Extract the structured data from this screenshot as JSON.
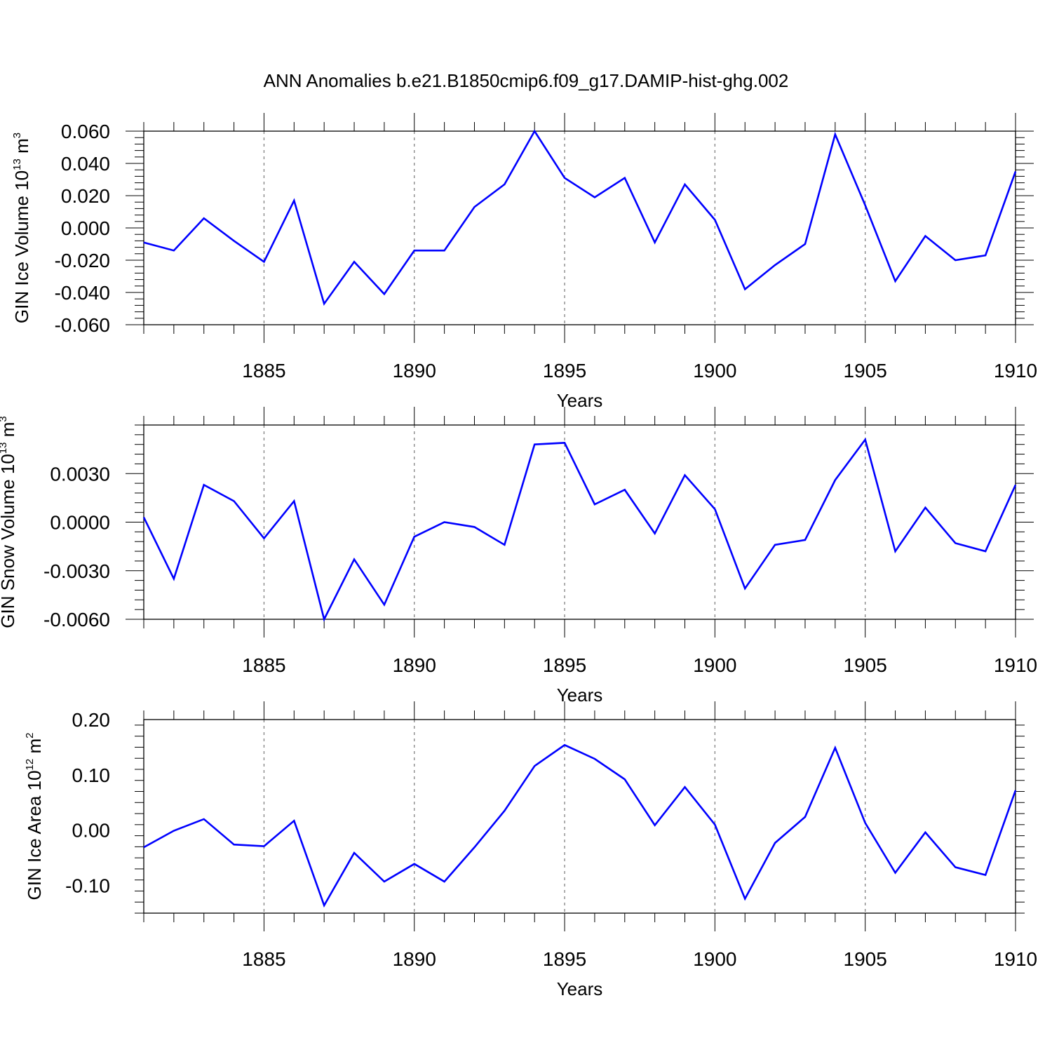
{
  "title": "ANN Anomalies b.e21.B1850cmip6.f09_g17.DAMIP-hist-ghg.002",
  "colors": {
    "line": "#0000ff",
    "axis": "#000000",
    "grid": "#777777"
  },
  "chart_data": [
    {
      "type": "line",
      "ylabel": {
        "base": "GIN Ice Volume 10",
        "exp": "13",
        "unit": " m",
        "unit_exp": "3"
      },
      "xlabel": "Years",
      "xlim": [
        1881,
        1910
      ],
      "ylim": [
        -0.06,
        0.06
      ],
      "yticks": [
        -0.06,
        -0.04,
        -0.02,
        0.0,
        0.02,
        0.04,
        0.06
      ],
      "ytick_labels": [
        "-0.060",
        "-0.040",
        "-0.020",
        "0.000",
        "0.020",
        "0.040",
        "0.060"
      ],
      "xticks": [
        1885,
        1890,
        1895,
        1900,
        1905,
        1910
      ],
      "xtick_labels": [
        "1885",
        "1890",
        "1895",
        "1900",
        "1905",
        "1910"
      ],
      "grid": "vertical dashed at major x ticks",
      "series": [
        {
          "x": [
            1881,
            1882,
            1883,
            1884,
            1885,
            1886,
            1887,
            1888,
            1889,
            1890,
            1891,
            1892,
            1893,
            1894,
            1895,
            1896,
            1897,
            1898,
            1899,
            1900,
            1901,
            1902,
            1903,
            1904,
            1905,
            1906,
            1907,
            1908,
            1909,
            1910
          ],
          "y": [
            -0.009,
            -0.014,
            0.006,
            -0.008,
            -0.021,
            0.017,
            -0.047,
            -0.021,
            -0.041,
            -0.014,
            -0.014,
            0.013,
            0.027,
            0.06,
            0.031,
            0.019,
            0.031,
            -0.009,
            0.027,
            0.005,
            -0.038,
            -0.023,
            -0.01,
            0.058,
            0.014,
            -0.033,
            -0.005,
            -0.02,
            -0.017,
            0.035
          ]
        }
      ]
    },
    {
      "type": "line",
      "ylabel": {
        "base": "GIN Snow Volume 10",
        "exp": "13",
        "unit": " m",
        "unit_exp": "3"
      },
      "xlabel": "Years",
      "xlim": [
        1881,
        1910
      ],
      "ylim": [
        -0.006,
        0.006
      ],
      "yticks": [
        -0.006,
        -0.003,
        0.0,
        0.003
      ],
      "ytick_labels": [
        "-0.0060",
        "-0.0030",
        "0.0000",
        "0.0030"
      ],
      "xticks": [
        1885,
        1890,
        1895,
        1900,
        1905,
        1910
      ],
      "xtick_labels": [
        "1885",
        "1890",
        "1895",
        "1900",
        "1905",
        "1910"
      ],
      "grid": "vertical dashed at major x ticks",
      "series": [
        {
          "x": [
            1881,
            1882,
            1883,
            1884,
            1885,
            1886,
            1887,
            1888,
            1889,
            1890,
            1891,
            1892,
            1893,
            1894,
            1895,
            1896,
            1897,
            1898,
            1899,
            1900,
            1901,
            1902,
            1903,
            1904,
            1905,
            1906,
            1907,
            1908,
            1909,
            1910
          ],
          "y": [
            0.0003,
            -0.0035,
            0.0023,
            0.0013,
            -0.001,
            0.0013,
            -0.006,
            -0.0023,
            -0.0051,
            -0.0009,
            -0.0,
            -0.0003,
            -0.0014,
            0.0048,
            0.0049,
            0.0011,
            0.002,
            -0.0007,
            0.0029,
            0.0008,
            -0.0041,
            -0.0014,
            -0.0011,
            0.0026,
            0.0051,
            -0.0018,
            0.0009,
            -0.0013,
            -0.0018,
            0.0023
          ]
        }
      ]
    },
    {
      "type": "line",
      "ylabel": {
        "base": "GIN Ice Area 10",
        "exp": "12",
        "unit": " m",
        "unit_exp": "2"
      },
      "xlabel": "Years",
      "xlim": [
        1881,
        1910
      ],
      "ylim": [
        -0.15,
        0.2
      ],
      "yticks": [
        -0.1,
        0.0,
        0.1,
        0.2
      ],
      "ytick_labels": [
        "-0.10",
        "0.00",
        "0.10",
        "0.20"
      ],
      "xticks": [
        1885,
        1890,
        1895,
        1900,
        1905,
        1910
      ],
      "xtick_labels": [
        "1885",
        "1890",
        "1895",
        "1900",
        "1905",
        "1910"
      ],
      "grid": "vertical dashed at major x ticks",
      "series": [
        {
          "x": [
            1881,
            1882,
            1883,
            1884,
            1885,
            1886,
            1887,
            1888,
            1889,
            1890,
            1891,
            1892,
            1893,
            1894,
            1895,
            1896,
            1897,
            1898,
            1899,
            1900,
            1901,
            1902,
            1903,
            1904,
            1905,
            1906,
            1907,
            1908,
            1909,
            1910
          ],
          "y": [
            -0.031,
            -0.001,
            0.02,
            -0.026,
            -0.029,
            0.017,
            -0.136,
            -0.041,
            -0.093,
            -0.061,
            -0.093,
            -0.031,
            0.035,
            0.116,
            0.154,
            0.129,
            0.092,
            0.009,
            0.078,
            0.01,
            -0.124,
            -0.023,
            0.024,
            0.149,
            0.013,
            -0.077,
            -0.004,
            -0.067,
            -0.081,
            0.072
          ]
        }
      ]
    }
  ]
}
